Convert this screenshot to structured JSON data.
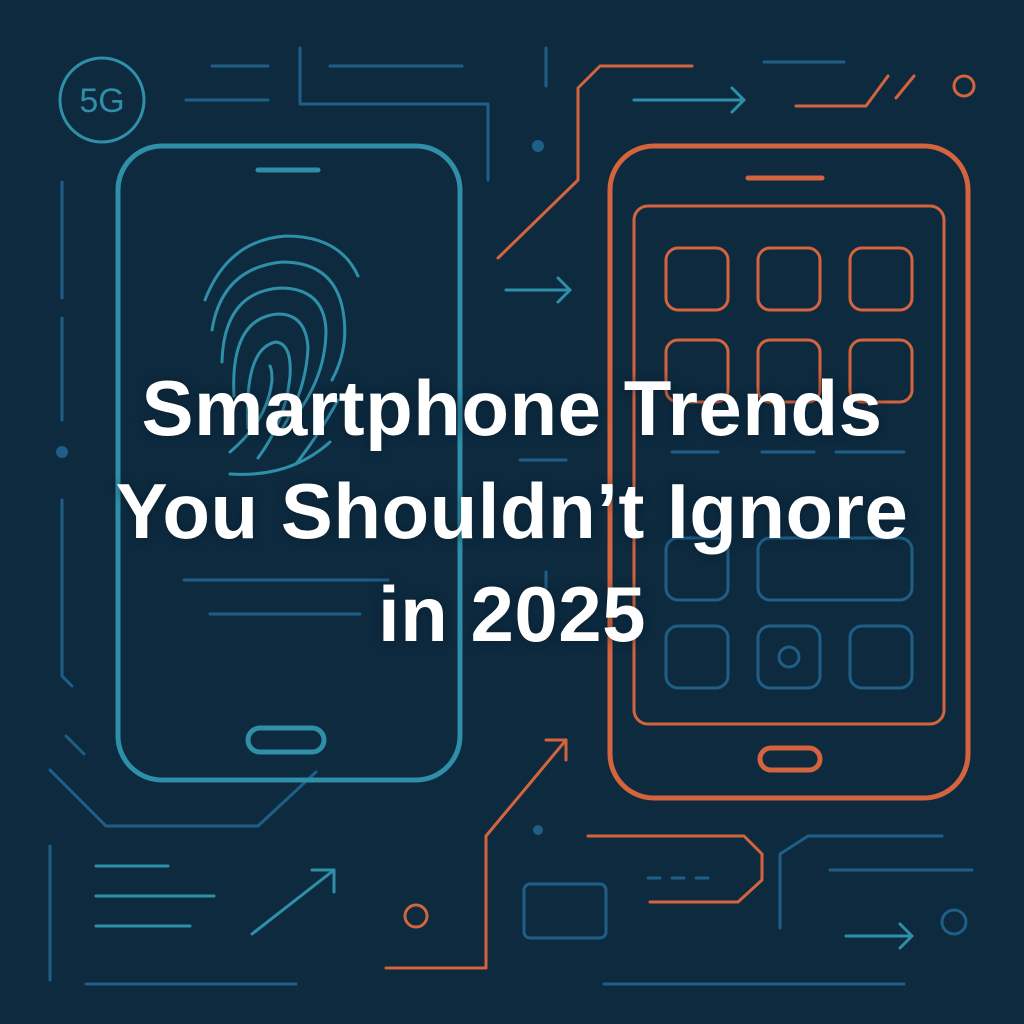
{
  "badge": {
    "label": "5G"
  },
  "title": {
    "line1": "Smartphone Trends",
    "line2": "You Shouldn’t Ignore",
    "line3": "in 2025"
  },
  "colors": {
    "background": "#0d2a3f",
    "teal": "#2f8fa8",
    "blue": "#1f5e86",
    "orange": "#d4643d",
    "title_text": "#ffffff"
  },
  "icons": {
    "left_phone": "fingerprint-icon",
    "right_phone": "app-grid-icon"
  }
}
